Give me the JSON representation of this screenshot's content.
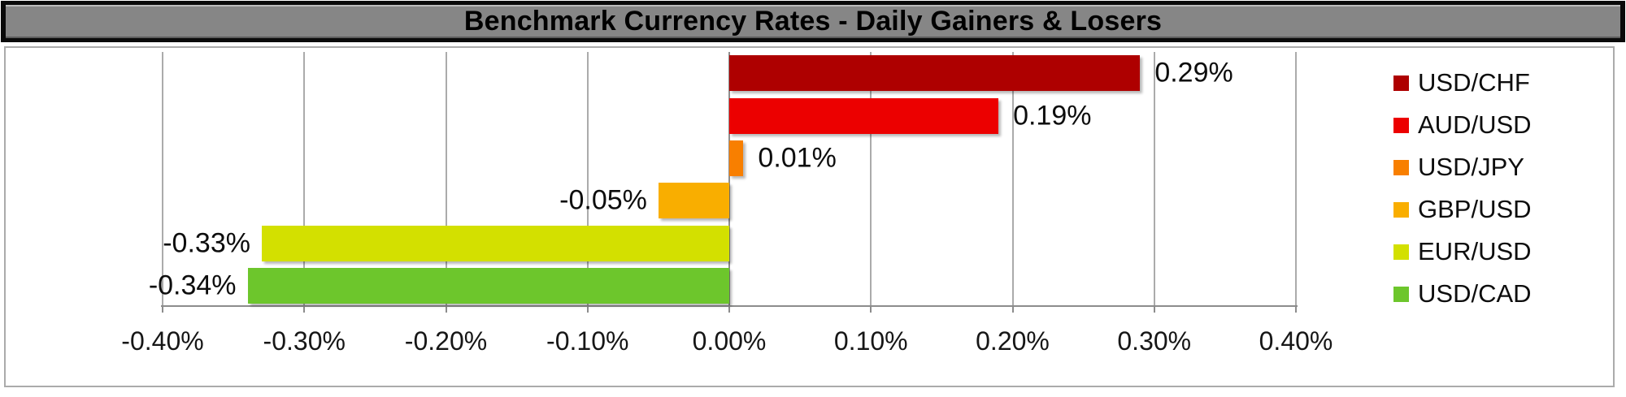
{
  "title": "Benchmark Currency Rates - Daily Gainers & Losers",
  "chart_data": {
    "type": "bar",
    "orientation": "horizontal",
    "title": "Benchmark Currency Rates - Daily Gainers & Losers",
    "categories": [
      "USD/CHF",
      "AUD/USD",
      "USD/JPY",
      "GBP/USD",
      "EUR/USD",
      "USD/CAD"
    ],
    "values": [
      0.29,
      0.19,
      0.01,
      -0.05,
      -0.33,
      -0.34
    ],
    "data_labels": [
      "0.29%",
      "0.19%",
      "0.01%",
      "-0.05%",
      "-0.33%",
      "-0.34%"
    ],
    "bar_colors": [
      "#AE0000",
      "#EC0000",
      "#F87F00",
      "#F9AE00",
      "#D3E000",
      "#6DC62C"
    ],
    "xlim": [
      -0.4,
      0.4
    ],
    "x_ticks": [
      -0.4,
      -0.3,
      -0.2,
      -0.1,
      0,
      0.1,
      0.2,
      0.3,
      0.4
    ],
    "x_tick_labels": [
      "-0.40%",
      "-0.30%",
      "-0.20%",
      "-0.10%",
      "0.00%",
      "0.10%",
      "0.20%",
      "0.30%",
      "0.40%"
    ],
    "grid": true,
    "legend_position": "right",
    "legend_entries": [
      {
        "label": "USD/CHF",
        "color": "#AE0000"
      },
      {
        "label": "AUD/USD",
        "color": "#EC0000"
      },
      {
        "label": "USD/JPY",
        "color": "#F87F00"
      },
      {
        "label": "GBP/USD",
        "color": "#F9AE00"
      },
      {
        "label": "EUR/USD",
        "color": "#D3E000"
      },
      {
        "label": "USD/CAD",
        "color": "#6DC62C"
      }
    ]
  }
}
